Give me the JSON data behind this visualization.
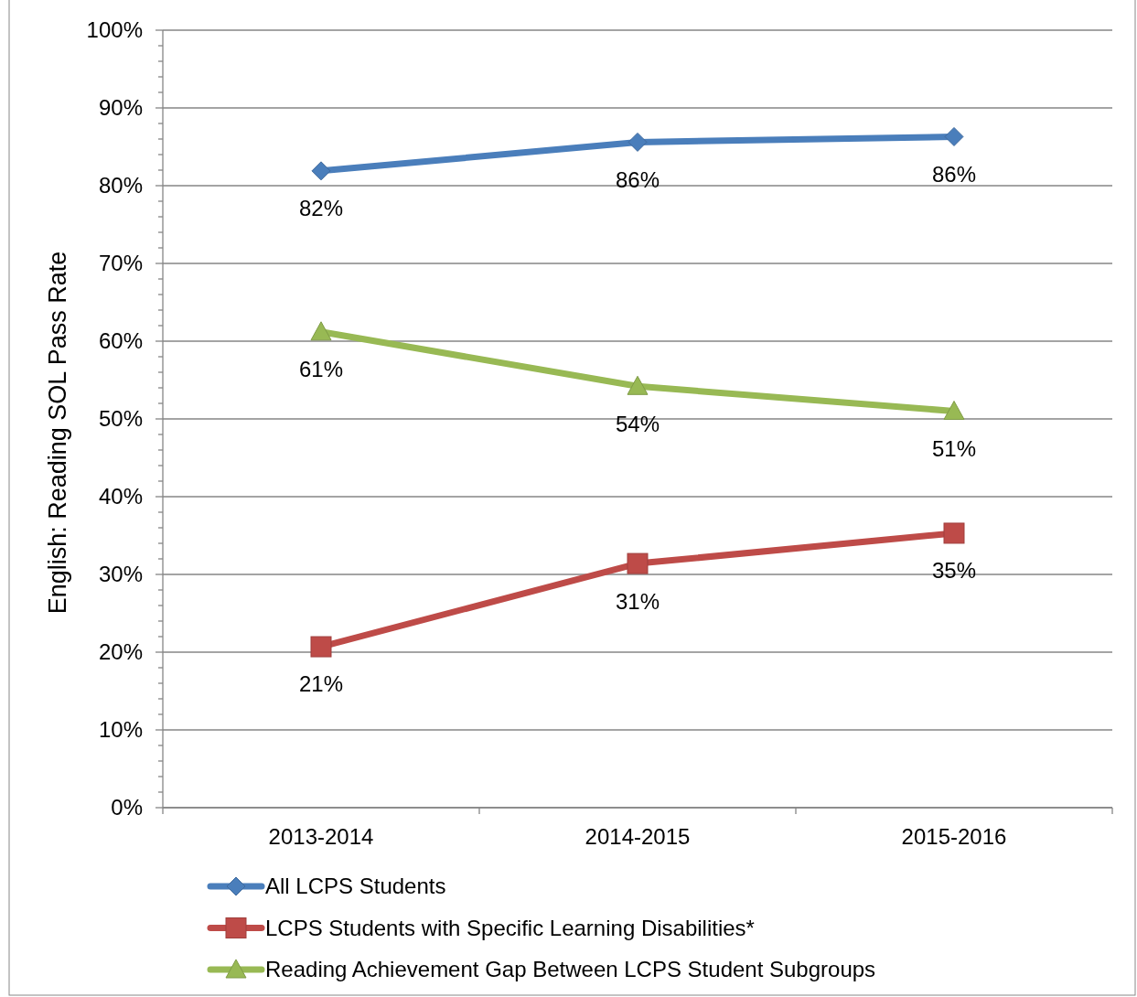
{
  "chart_data": {
    "type": "line",
    "ylabel": "English: Reading SOL Pass Rate",
    "categories": [
      "2013-2014",
      "2014-2015",
      "2015-2016"
    ],
    "ylim": [
      0,
      100
    ],
    "yticks": [
      {
        "value": 0,
        "label": "0%"
      },
      {
        "value": 2,
        "label": null
      },
      {
        "value": 4,
        "label": null
      },
      {
        "value": 6,
        "label": null
      },
      {
        "value": 8,
        "label": null
      },
      {
        "value": 10,
        "label": "10%"
      },
      {
        "value": 12,
        "label": null
      },
      {
        "value": 14,
        "label": null
      },
      {
        "value": 16,
        "label": null
      },
      {
        "value": 18,
        "label": null
      },
      {
        "value": 20,
        "label": "20%"
      },
      {
        "value": 22,
        "label": null
      },
      {
        "value": 24,
        "label": null
      },
      {
        "value": 26,
        "label": null
      },
      {
        "value": 28,
        "label": null
      },
      {
        "value": 30,
        "label": "30%"
      },
      {
        "value": 32,
        "label": null
      },
      {
        "value": 34,
        "label": null
      },
      {
        "value": 36,
        "label": null
      },
      {
        "value": 38,
        "label": null
      },
      {
        "value": 40,
        "label": "40%"
      },
      {
        "value": 42,
        "label": null
      },
      {
        "value": 44,
        "label": null
      },
      {
        "value": 46,
        "label": null
      },
      {
        "value": 48,
        "label": null
      },
      {
        "value": 50,
        "label": "50%"
      },
      {
        "value": 52,
        "label": null
      },
      {
        "value": 54,
        "label": null
      },
      {
        "value": 56,
        "label": null
      },
      {
        "value": 58,
        "label": null
      },
      {
        "value": 60,
        "label": "60%"
      },
      {
        "value": 62,
        "label": null
      },
      {
        "value": 64,
        "label": null
      },
      {
        "value": 66,
        "label": null
      },
      {
        "value": 68,
        "label": null
      },
      {
        "value": 70,
        "label": "70%"
      },
      {
        "value": 72,
        "label": null
      },
      {
        "value": 74,
        "label": null
      },
      {
        "value": 76,
        "label": null
      },
      {
        "value": 78,
        "label": null
      },
      {
        "value": 80,
        "label": "80%"
      },
      {
        "value": 82,
        "label": null
      },
      {
        "value": 84,
        "label": null
      },
      {
        "value": 86,
        "label": null
      },
      {
        "value": 88,
        "label": null
      },
      {
        "value": 90,
        "label": "90%"
      },
      {
        "value": 92,
        "label": null
      },
      {
        "value": 94,
        "label": null
      },
      {
        "value": 96,
        "label": null
      },
      {
        "value": 98,
        "label": null
      },
      {
        "value": 100,
        "label": "100%"
      }
    ],
    "grid": "y",
    "legend": "bottom",
    "series": [
      {
        "name": "All LCPS Students",
        "color": "#4a7ebb",
        "marker": "diamond",
        "values": [
          81.9,
          85.6,
          86.3
        ],
        "value_labels": [
          "82%",
          "86%",
          "86%"
        ]
      },
      {
        "name": "LCPS Students with Specific Learning Disabilities*",
        "color": "#be4b48",
        "marker": "square",
        "values": [
          20.7,
          31.4,
          35.3
        ],
        "value_labels": [
          "21%",
          "31%",
          "35%"
        ]
      },
      {
        "name": "Reading Achievement Gap Between LCPS Student Subgroups",
        "color": "#98b954",
        "marker": "triangle",
        "values": [
          61.2,
          54.2,
          51.0
        ],
        "value_labels": [
          "61%",
          "54%",
          "51%"
        ]
      }
    ]
  }
}
